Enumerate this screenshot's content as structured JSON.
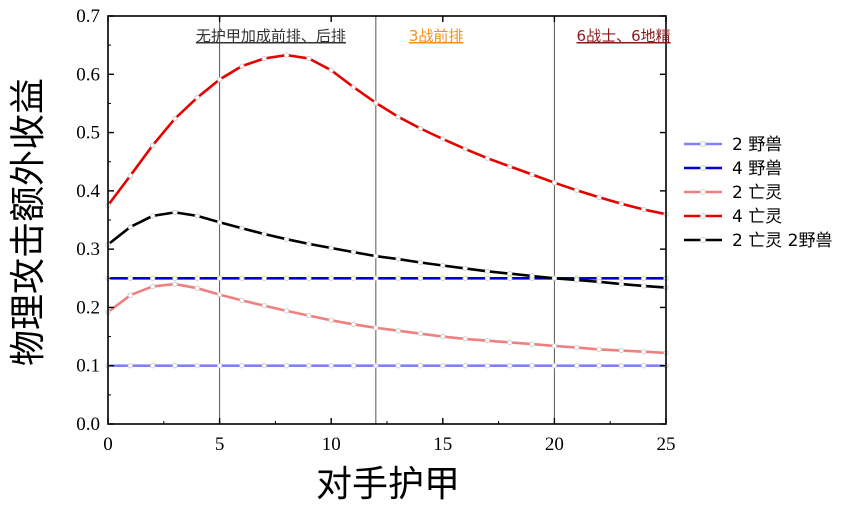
{
  "chart_data": {
    "type": "line",
    "xlabel": "对手护甲",
    "ylabel": "物理攻击额外收益",
    "xlim": [
      0,
      25
    ],
    "ylim": [
      0.0,
      0.7
    ],
    "x_ticks": [
      0,
      5,
      10,
      15,
      20,
      25
    ],
    "y_ticks": [
      0.0,
      0.1,
      0.2,
      0.3,
      0.4,
      0.5,
      0.6,
      0.7
    ],
    "x_tick_labels": [
      "0",
      "5",
      "10",
      "15",
      "20",
      "25"
    ],
    "y_tick_labels": [
      "0.0",
      "0.1",
      "0.2",
      "0.3",
      "0.4",
      "0.5",
      "0.6",
      "0.7"
    ],
    "grid": false,
    "legend_position": "right",
    "vlines": [
      5,
      12,
      20
    ],
    "annotations": [
      {
        "text": "无护甲加成前排、后排",
        "color": "#333333",
        "x": 7.3
      },
      {
        "text": "3战前排",
        "color": "#f39019",
        "x": 14.7
      },
      {
        "text": "6战士、6地精",
        "color": "#8b1a1a",
        "x": 23.1
      }
    ],
    "x": [
      0,
      1,
      2,
      3,
      4,
      5,
      6,
      7,
      8,
      9,
      10,
      11,
      12,
      13,
      14,
      15,
      16,
      17,
      18,
      19,
      20,
      21,
      22,
      23,
      24,
      25
    ],
    "series": [
      {
        "name": "2 野兽",
        "color": "#8080ff",
        "values": [
          0.1,
          0.1,
          0.1,
          0.1,
          0.1,
          0.1,
          0.1,
          0.1,
          0.1,
          0.1,
          0.1,
          0.1,
          0.1,
          0.1,
          0.1,
          0.1,
          0.1,
          0.1,
          0.1,
          0.1,
          0.1,
          0.1,
          0.1,
          0.1,
          0.1,
          0.1
        ]
      },
      {
        "name": "4 野兽",
        "color": "#0000cc",
        "values": [
          0.25,
          0.25,
          0.25,
          0.25,
          0.25,
          0.25,
          0.25,
          0.25,
          0.25,
          0.25,
          0.25,
          0.25,
          0.25,
          0.25,
          0.25,
          0.25,
          0.25,
          0.25,
          0.25,
          0.25,
          0.25,
          0.25,
          0.25,
          0.25,
          0.25,
          0.25
        ]
      },
      {
        "name": "2 亡灵",
        "color": "#f08080",
        "values": [
          0.192,
          0.221,
          0.236,
          0.24,
          0.233,
          0.222,
          0.212,
          0.203,
          0.194,
          0.186,
          0.178,
          0.171,
          0.165,
          0.16,
          0.155,
          0.15,
          0.146,
          0.143,
          0.14,
          0.137,
          0.134,
          0.131,
          0.128,
          0.126,
          0.124,
          0.122
        ]
      },
      {
        "name": "4 亡灵",
        "color": "#e60000",
        "values": [
          0.375,
          0.426,
          0.478,
          0.524,
          0.56,
          0.591,
          0.614,
          0.627,
          0.633,
          0.627,
          0.607,
          0.578,
          0.551,
          0.527,
          0.507,
          0.489,
          0.472,
          0.456,
          0.442,
          0.428,
          0.414,
          0.401,
          0.389,
          0.378,
          0.368,
          0.36
        ]
      },
      {
        "name": "2 亡灵 2野兽",
        "color": "#000000",
        "values": [
          0.308,
          0.338,
          0.357,
          0.363,
          0.357,
          0.346,
          0.336,
          0.326,
          0.317,
          0.309,
          0.302,
          0.295,
          0.288,
          0.283,
          0.277,
          0.272,
          0.267,
          0.262,
          0.258,
          0.254,
          0.25,
          0.247,
          0.244,
          0.24,
          0.237,
          0.234
        ]
      }
    ]
  }
}
